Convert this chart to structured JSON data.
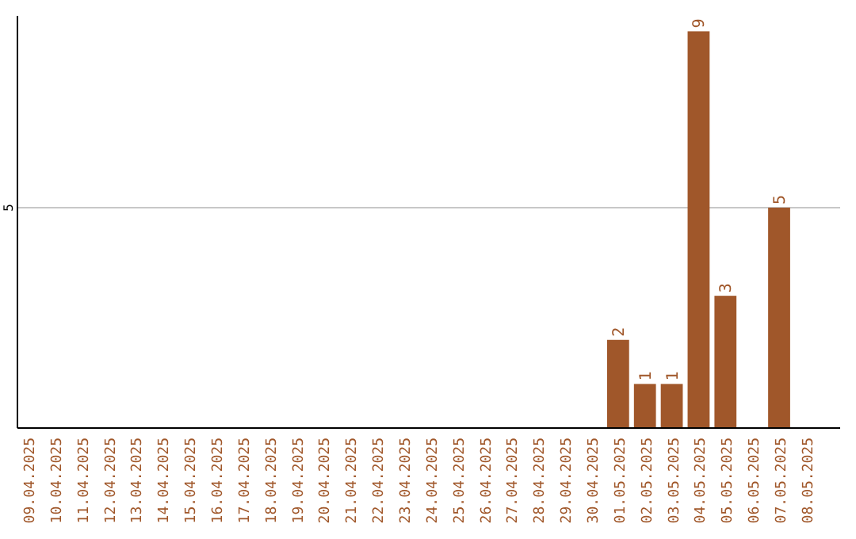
{
  "chart_data": {
    "type": "bar",
    "categories": [
      "09.04.2025",
      "10.04.2025",
      "11.04.2025",
      "12.04.2025",
      "13.04.2025",
      "14.04.2025",
      "15.04.2025",
      "16.04.2025",
      "17.04.2025",
      "18.04.2025",
      "19.04.2025",
      "20.04.2025",
      "21.04.2025",
      "22.04.2025",
      "23.04.2025",
      "24.04.2025",
      "25.04.2025",
      "26.04.2025",
      "27.04.2025",
      "28.04.2025",
      "29.04.2025",
      "30.04.2025",
      "01.05.2025",
      "02.05.2025",
      "03.05.2025",
      "04.05.2025",
      "05.05.2025",
      "06.05.2025",
      "07.05.2025",
      "08.05.2025"
    ],
    "values": [
      null,
      null,
      null,
      null,
      null,
      null,
      null,
      null,
      null,
      null,
      null,
      null,
      null,
      null,
      null,
      null,
      null,
      null,
      null,
      null,
      null,
      null,
      2,
      1,
      1,
      9,
      3,
      null,
      5,
      null
    ],
    "data_labels": true,
    "color": "#a0572a",
    "ylim": [
      0,
      9.35
    ],
    "yticks": [
      5
    ],
    "grid": "y"
  }
}
